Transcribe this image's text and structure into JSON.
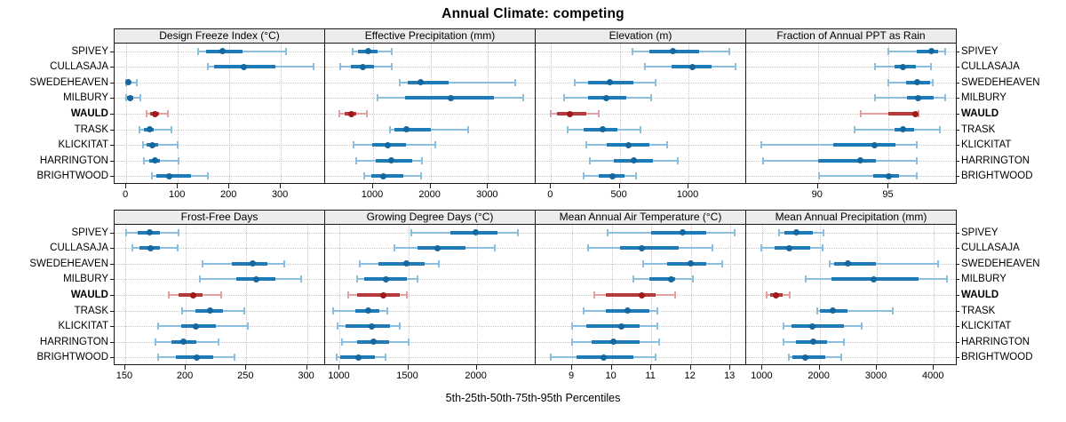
{
  "title": "Annual Climate: competing",
  "caption": "5th-25th-50th-75th-95th Percentiles",
  "highlight_site": "WAULD",
  "sites": [
    "SPIVEY",
    "CULLASAJA",
    "SWEDEHEAVEN",
    "MILBURY",
    "WAULD",
    "TRASK",
    "KLICKITAT",
    "HARRINGTON",
    "BRIGHTWOOD"
  ],
  "percentile_labels": [
    "5th",
    "25th",
    "50th",
    "75th",
    "95th"
  ],
  "colors": {
    "normal_dot": "#15689f",
    "normal_bar": "#1f7ab8",
    "normal_whisker": "#8bbedf",
    "highlight_dot": "#9f1a1a",
    "highlight_bar": "#b33b3b",
    "highlight_whisker": "#e2a0a0",
    "header_bg": "#ececec",
    "panel_border": "#1a1a1a",
    "grid": "#c9c9c9"
  },
  "chart_data": [
    {
      "type": "dotplot",
      "panel": "Design Freeze Index (°C)",
      "row": 0,
      "col": 0,
      "xlim": [
        -21,
        386
      ],
      "ticks": [
        0,
        100,
        200,
        300
      ],
      "grid": "dotted",
      "series": [
        {
          "name": "SPIVEY",
          "values": [
            140,
            155,
            187,
            225,
            310
          ]
        },
        {
          "name": "CULLASAJA",
          "values": [
            158,
            170,
            229,
            290,
            363
          ]
        },
        {
          "name": "SWEDEHEAVEN",
          "values": [
            0,
            1,
            4,
            9,
            20
          ]
        },
        {
          "name": "MILBURY",
          "values": [
            0,
            2,
            7,
            13,
            27
          ]
        },
        {
          "name": "WAULD",
          "values": [
            40,
            47,
            55,
            64,
            80
          ]
        },
        {
          "name": "TRASK",
          "values": [
            26,
            35,
            46,
            53,
            87
          ]
        },
        {
          "name": "KLICKITAT",
          "values": [
            33,
            40,
            50,
            61,
            100
          ]
        },
        {
          "name": "HARRINGTON",
          "values": [
            34,
            44,
            55,
            66,
            102
          ]
        },
        {
          "name": "BRIGHTWOOD",
          "values": [
            49,
            58,
            84,
            126,
            158
          ]
        }
      ]
    },
    {
      "type": "dotplot",
      "panel": "Effective Precipitation (mm)",
      "row": 0,
      "col": 1,
      "xlim": [
        180,
        3830
      ],
      "ticks": [
        1000,
        2000,
        3000
      ],
      "grid": "dotted",
      "series": [
        {
          "name": "SPIVEY",
          "values": [
            640,
            740,
            915,
            1070,
            1330
          ]
        },
        {
          "name": "CULLASAJA",
          "values": [
            430,
            610,
            820,
            1015,
            1330
          ]
        },
        {
          "name": "SWEDEHEAVEN",
          "values": [
            1470,
            1600,
            1830,
            2310,
            3480
          ]
        },
        {
          "name": "MILBURY",
          "values": [
            1080,
            1560,
            2350,
            3100,
            3620
          ]
        },
        {
          "name": "WAULD",
          "values": [
            410,
            510,
            625,
            710,
            890
          ]
        },
        {
          "name": "TRASK",
          "values": [
            1290,
            1370,
            1580,
            2005,
            2650
          ]
        },
        {
          "name": "KLICKITAT",
          "values": [
            660,
            990,
            1255,
            1575,
            2080
          ]
        },
        {
          "name": "HARRINGTON",
          "values": [
            700,
            1040,
            1310,
            1675,
            1850
          ]
        },
        {
          "name": "BRIGHTWOOD",
          "values": [
            840,
            965,
            1170,
            1520,
            1830
          ]
        }
      ]
    },
    {
      "type": "dotplot",
      "panel": "Elevation (m)",
      "row": 0,
      "col": 2,
      "xlim": [
        -105,
        1420
      ],
      "ticks": [
        0,
        500,
        1000
      ],
      "grid": "dotted",
      "series": [
        {
          "name": "SPIVEY",
          "values": [
            590,
            715,
            890,
            1080,
            1300
          ]
        },
        {
          "name": "CULLASAJA",
          "values": [
            685,
            880,
            1030,
            1165,
            1340
          ]
        },
        {
          "name": "SWEDEHEAVEN",
          "values": [
            170,
            270,
            430,
            600,
            760
          ]
        },
        {
          "name": "MILBURY",
          "values": [
            95,
            270,
            400,
            545,
            730
          ]
        },
        {
          "name": "WAULD",
          "values": [
            0,
            45,
            135,
            255,
            350
          ]
        },
        {
          "name": "TRASK",
          "values": [
            120,
            235,
            375,
            480,
            650
          ]
        },
        {
          "name": "KLICKITAT",
          "values": [
            255,
            405,
            565,
            715,
            845
          ]
        },
        {
          "name": "HARRINGTON",
          "values": [
            280,
            460,
            600,
            740,
            920
          ]
        },
        {
          "name": "BRIGHTWOOD",
          "values": [
            235,
            345,
            445,
            535,
            620
          ]
        }
      ]
    },
    {
      "type": "dotplot",
      "panel": "Fraction of Annual PPT as Rain",
      "row": 0,
      "col": 3,
      "xlim": [
        85,
        99.8
      ],
      "ticks": [
        90,
        95
      ],
      "grid": "dotted",
      "series": [
        {
          "name": "SPIVEY",
          "values": [
            95.0,
            97.0,
            98.0,
            98.5,
            99.0
          ]
        },
        {
          "name": "CULLASAJA",
          "values": [
            94.0,
            95.4,
            96.0,
            96.9,
            98.0
          ]
        },
        {
          "name": "SWEDEHEAVEN",
          "values": [
            95.0,
            96.2,
            97.0,
            97.9,
            98.1
          ]
        },
        {
          "name": "MILBURY",
          "values": [
            94.0,
            96.3,
            97.1,
            98.2,
            99.0
          ]
        },
        {
          "name": "WAULD",
          "values": [
            93.0,
            95.0,
            96.9,
            97.0,
            97.1
          ]
        },
        {
          "name": "TRASK",
          "values": [
            92.6,
            95.4,
            96.0,
            96.8,
            98.6
          ]
        },
        {
          "name": "KLICKITAT",
          "values": [
            86.0,
            91.1,
            94.0,
            95.5,
            97.0
          ]
        },
        {
          "name": "HARRINGTON",
          "values": [
            86.1,
            90.0,
            93.0,
            94.1,
            97.0
          ]
        },
        {
          "name": "BRIGHTWOOD",
          "values": [
            90.1,
            93.9,
            95.0,
            95.7,
            97.0
          ]
        }
      ]
    },
    {
      "type": "dotplot",
      "panel": "Frost-Free Days",
      "row": 1,
      "col": 0,
      "xlim": [
        142,
        315
      ],
      "ticks": [
        150,
        200,
        250,
        300
      ],
      "grid": "dotted",
      "series": [
        {
          "name": "SPIVEY",
          "values": [
            151,
            160,
            170,
            179,
            194
          ]
        },
        {
          "name": "CULLASAJA",
          "values": [
            156,
            162,
            171,
            179,
            193
          ]
        },
        {
          "name": "SWEDEHEAVEN",
          "values": [
            214,
            238,
            255,
            267,
            281
          ]
        },
        {
          "name": "MILBURY",
          "values": [
            212,
            242,
            258,
            274,
            295
          ]
        },
        {
          "name": "WAULD",
          "values": [
            186,
            194,
            206,
            214,
            229
          ]
        },
        {
          "name": "TRASK",
          "values": [
            197,
            208,
            220,
            231,
            248
          ]
        },
        {
          "name": "KLICKITAT",
          "values": [
            177,
            196,
            208,
            225,
            251
          ]
        },
        {
          "name": "HARRINGTON",
          "values": [
            175,
            188,
            198,
            209,
            227
          ]
        },
        {
          "name": "BRIGHTWOOD",
          "values": [
            177,
            192,
            209,
            223,
            240
          ]
        }
      ]
    },
    {
      "type": "dotplot",
      "panel": "Growing Degree Days (°C)",
      "row": 1,
      "col": 1,
      "xlim": [
        900,
        2430
      ],
      "ticks": [
        1000,
        1500,
        2000
      ],
      "grid": "dotted",
      "series": [
        {
          "name": "SPIVEY",
          "values": [
            1520,
            1810,
            1990,
            2150,
            2300
          ]
        },
        {
          "name": "CULLASAJA",
          "values": [
            1400,
            1570,
            1715,
            1920,
            2130
          ]
        },
        {
          "name": "SWEDEHEAVEN",
          "values": [
            1145,
            1285,
            1485,
            1620,
            1725
          ]
        },
        {
          "name": "MILBURY",
          "values": [
            1125,
            1180,
            1340,
            1490,
            1565
          ]
        },
        {
          "name": "WAULD",
          "values": [
            1065,
            1125,
            1315,
            1435,
            1490
          ]
        },
        {
          "name": "TRASK",
          "values": [
            950,
            1115,
            1210,
            1290,
            1350
          ]
        },
        {
          "name": "KLICKITAT",
          "values": [
            985,
            1040,
            1235,
            1370,
            1440
          ]
        },
        {
          "name": "HARRINGTON",
          "values": [
            1015,
            1125,
            1250,
            1360,
            1500
          ]
        },
        {
          "name": "BRIGHTWOOD",
          "values": [
            980,
            1005,
            1135,
            1255,
            1335
          ]
        }
      ]
    },
    {
      "type": "dotplot",
      "panel": "Mean Annual Air Temperature (°C)",
      "row": 1,
      "col": 2,
      "xlim": [
        8.1,
        13.4
      ],
      "ticks": [
        9,
        10,
        11,
        12,
        13
      ],
      "grid": "dotted",
      "series": [
        {
          "name": "SPIVEY",
          "values": [
            9.9,
            11.0,
            11.8,
            12.4,
            13.1
          ]
        },
        {
          "name": "CULLASAJA",
          "values": [
            9.4,
            10.2,
            10.75,
            11.7,
            12.55
          ]
        },
        {
          "name": "SWEDEHEAVEN",
          "values": [
            10.8,
            11.4,
            12.0,
            12.4,
            12.8
          ]
        },
        {
          "name": "MILBURY",
          "values": [
            10.55,
            10.95,
            11.5,
            11.6,
            12.05
          ]
        },
        {
          "name": "WAULD",
          "values": [
            9.55,
            9.85,
            10.75,
            11.1,
            11.6
          ]
        },
        {
          "name": "TRASK",
          "values": [
            9.3,
            9.85,
            10.4,
            10.95,
            11.15
          ]
        },
        {
          "name": "KLICKITAT",
          "values": [
            9.0,
            9.35,
            10.25,
            10.7,
            11.15
          ]
        },
        {
          "name": "HARRINGTON",
          "values": [
            9.0,
            9.5,
            10.05,
            10.7,
            11.2
          ]
        },
        {
          "name": "BRIGHTWOOD",
          "values": [
            8.45,
            9.1,
            9.8,
            10.55,
            11.1
          ]
        }
      ]
    },
    {
      "type": "dotplot",
      "panel": "Mean Annual Precipitation (mm)",
      "row": 1,
      "col": 3,
      "xlim": [
        730,
        4400
      ],
      "ticks": [
        1000,
        2000,
        3000,
        4000
      ],
      "grid": "dotted",
      "series": [
        {
          "name": "SPIVEY",
          "values": [
            1290,
            1390,
            1600,
            1875,
            2065
          ]
        },
        {
          "name": "CULLASAJA",
          "values": [
            985,
            1205,
            1465,
            1840,
            2045
          ]
        },
        {
          "name": "SWEDEHEAVEN",
          "values": [
            2170,
            2260,
            2500,
            2985,
            4070
          ]
        },
        {
          "name": "MILBURY",
          "values": [
            1750,
            2200,
            2950,
            3730,
            4230
          ]
        },
        {
          "name": "WAULD",
          "values": [
            1065,
            1140,
            1240,
            1345,
            1480
          ]
        },
        {
          "name": "TRASK",
          "values": [
            1965,
            2005,
            2235,
            2495,
            3280
          ]
        },
        {
          "name": "KLICKITAT",
          "values": [
            1360,
            1515,
            1875,
            2420,
            2735
          ]
        },
        {
          "name": "HARRINGTON",
          "values": [
            1375,
            1580,
            1890,
            2135,
            2430
          ]
        },
        {
          "name": "BRIGHTWOOD",
          "values": [
            1465,
            1530,
            1745,
            2100,
            2375
          ]
        }
      ]
    }
  ]
}
